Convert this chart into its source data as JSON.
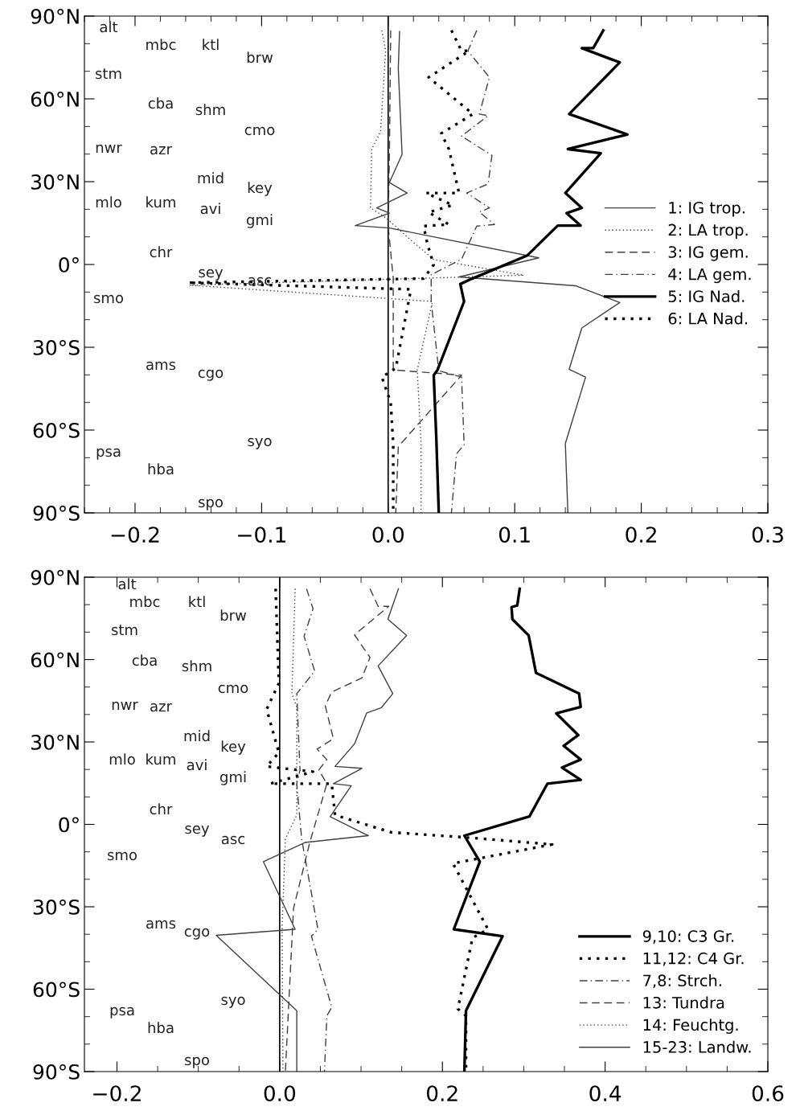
{
  "chart_data": [
    {
      "type": "line",
      "xlim": [
        -0.24,
        0.3
      ],
      "ylim": [
        -90,
        90
      ],
      "xticks": [
        {
          "value": -0.2,
          "label": "−0.2"
        },
        {
          "value": -0.1,
          "label": "−0.1"
        },
        {
          "value": 0.0,
          "label": "0.0"
        },
        {
          "value": 0.1,
          "label": "0.1"
        },
        {
          "value": 0.2,
          "label": "0.2"
        },
        {
          "value": 0.3,
          "label": "0.3"
        }
      ],
      "yticks": [
        {
          "value": 90,
          "label": "90°N"
        },
        {
          "value": 60,
          "label": "60°N"
        },
        {
          "value": 30,
          "label": "30°N"
        },
        {
          "value": 0,
          "label": "0°"
        },
        {
          "value": -30,
          "label": "30°S"
        },
        {
          "value": -60,
          "label": "60°S"
        },
        {
          "value": -90,
          "label": "90°S"
        }
      ],
      "grid": false,
      "legend": "right",
      "marker": "none",
      "ref_lines": [
        {
          "axis": "x",
          "value": 0,
          "color": "#000000"
        }
      ],
      "series": [
        {
          "name": "1: IG trop.",
          "color": "#404040",
          "line_style": "solid",
          "x": [
            0.009,
            0.008,
            0.011,
            0.001,
            0.015,
            -0.009,
            0.001,
            -0.026,
            0.001,
            0.119,
            0.056,
            0.148,
            0.183,
            0.153,
            0.143,
            0.156,
            0.14,
            0.142
          ],
          "values": [
            84.4,
            71.0,
            39.9,
            29.7,
            25.9,
            20.5,
            18.6,
            14.1,
            13.2,
            2.4,
            -4.5,
            -7.7,
            -13.8,
            -23.0,
            -38.0,
            -40.8,
            -64.9,
            -90
          ]
        },
        {
          "name": "2: LA trop.",
          "color": "#404040",
          "line_style": "dotted",
          "x": [
            -0.005,
            -0.002,
            -0.006,
            -0.013,
            -0.014,
            -0.002,
            0.018,
            0.036,
            0.107,
            -0.157,
            0.035,
            0.023,
            0.026,
            0.026
          ],
          "values": [
            84.8,
            77.4,
            48.1,
            41.8,
            20.5,
            17.0,
            8.8,
            1.8,
            -3.9,
            -7.5,
            -13.4,
            -38.2,
            -64.9,
            -90
          ]
        },
        {
          "name": "3: IG gem.",
          "color": "#404040",
          "line_style": "dashed",
          "x": [
            0.002,
            0.001,
            0.0,
            0.004,
            0.004,
            0.058,
            0.008,
            0.006
          ],
          "values": [
            84.8,
            40,
            14,
            -5,
            -38.2,
            -40.1,
            -66,
            -90
          ]
        },
        {
          "name": "4: LA gem.",
          "color": "#404040",
          "line_style": "dashdot",
          "x": [
            0.07,
            0.063,
            0.08,
            0.072,
            0.079,
            0.058,
            0.082,
            0.079,
            0.062,
            0.08,
            0.072,
            0.084,
            0.07,
            0.058,
            0.034,
            0.034,
            0.04,
            0.058,
            0.06,
            0.054,
            0.05
          ],
          "values": [
            84.8,
            77.4,
            67.8,
            54.5,
            53.9,
            46.5,
            39.5,
            29.2,
            25.9,
            20.5,
            19.0,
            14.5,
            13.9,
            1.9,
            -3.7,
            -13.4,
            -38.5,
            -40.8,
            -65.3,
            -68.6,
            -90
          ]
        },
        {
          "name": "5: IG Nad.",
          "color": "#000000",
          "line_style": "solid",
          "x": [
            0.17,
            0.162,
            0.153,
            0.183,
            0.143,
            0.189,
            0.142,
            0.168,
            0.14,
            0.153,
            0.141,
            0.152,
            0.134,
            0.11,
            0.066,
            0.057,
            0.06,
            0.039,
            0.036,
            0.038,
            0.04
          ],
          "values": [
            84.8,
            78.4,
            78.4,
            73.2,
            54.5,
            47.1,
            41.8,
            40.3,
            25.9,
            20.5,
            18.6,
            14.1,
            14.1,
            3.3,
            -5.2,
            -7.1,
            -13.4,
            -38.2,
            -40.1,
            -62.4,
            -90
          ]
        },
        {
          "name": "6: LA Nad.",
          "color": "#000000",
          "line_style": "dotted",
          "x": [
            0.05,
            0.058,
            0.064,
            0.032,
            0.067,
            0.042,
            0.048,
            0.056,
            0.03,
            0.051,
            0.032,
            0.048,
            0.028,
            0.031,
            0.036,
            0.028,
            -0.158,
            0.018,
            0.006,
            -0.005,
            0.002,
            0.004,
            0.004
          ],
          "values": [
            84.8,
            77.4,
            77.4,
            67.8,
            54.5,
            47.5,
            41.8,
            25.9,
            25.9,
            21.5,
            18.9,
            14.5,
            13.9,
            7.5,
            -0.1,
            -5.1,
            -6.6,
            -9,
            -37.6,
            -40.8,
            -50,
            -64.9,
            -90
          ]
        }
      ],
      "annotations": [
        "alt",
        "mbc",
        "ktl",
        "brw",
        "stm",
        "cba",
        "shm",
        "cmo",
        "nwr",
        "azr",
        "mid",
        "key",
        "mlo",
        "kum",
        "avi",
        "gmi",
        "chr",
        "sey",
        "asc",
        "smo",
        "ams",
        "cgo",
        "syo",
        "psa",
        "hba",
        "spo"
      ]
    },
    {
      "type": "line",
      "xlim": [
        -0.24,
        0.6
      ],
      "ylim": [
        -90,
        90
      ],
      "xticks": [
        {
          "value": -0.2,
          "label": "−0.2"
        },
        {
          "value": 0.0,
          "label": "0.0"
        },
        {
          "value": 0.2,
          "label": "0.2"
        },
        {
          "value": 0.4,
          "label": "0.4"
        },
        {
          "value": 0.6,
          "label": "0.6"
        }
      ],
      "yticks": [
        {
          "value": 90,
          "label": "90°N"
        },
        {
          "value": 60,
          "label": "60°N"
        },
        {
          "value": 30,
          "label": "30°N"
        },
        {
          "value": 0,
          "label": "0°"
        },
        {
          "value": -30,
          "label": "30°S"
        },
        {
          "value": -60,
          "label": "60°S"
        },
        {
          "value": -90,
          "label": "90°S"
        }
      ],
      "grid": false,
      "legend": "bottom right",
      "marker": "none",
      "ref_lines": [
        {
          "axis": "x",
          "value": 0,
          "color": "#000000"
        }
      ],
      "series": [
        {
          "name": "9,10: C3 Gr.",
          "color": "#000000",
          "line_style": "solid",
          "x": [
            0.295,
            0.292,
            0.285,
            0.286,
            0.306,
            0.315,
            0.368,
            0.37,
            0.34,
            0.367,
            0.349,
            0.37,
            0.347,
            0.37,
            0.329,
            0.307,
            0.227,
            0.246,
            0.214,
            0.274,
            0.229,
            0.227
          ],
          "values": [
            85.8,
            79.7,
            79.1,
            74.7,
            68.8,
            55.2,
            47.6,
            42.8,
            40.4,
            32.5,
            28.6,
            23.6,
            20.7,
            16.2,
            14.8,
            2.9,
            -4.1,
            -13.6,
            -38.2,
            -40.7,
            -67.8,
            -90
          ]
        },
        {
          "name": "11,12: C4 Gr.",
          "color": "#000000",
          "line_style": "dotted",
          "x": [
            -0.005,
            -0.001,
            -0.016,
            -0.001,
            -0.016,
            0.041,
            -0.012,
            0.064,
            0.068,
            0.137,
            0.227,
            0.335,
            0.213,
            0.256,
            0.237,
            0.219,
            0.229,
            0.229
          ],
          "values": [
            85.8,
            51.4,
            41.9,
            26.1,
            21.1,
            19.2,
            14.8,
            14.8,
            3.4,
            -2.9,
            -4.7,
            -7.3,
            -14.2,
            -38.2,
            -41.3,
            -67.2,
            -69.7,
            -90
          ]
        },
        {
          "name": "7,8: Strch.",
          "color": "#404040",
          "line_style": "dashdot",
          "x": [
            0.033,
            0.041,
            0.03,
            0.043,
            0.021,
            0.025,
            0.021,
            0.027,
            0.047,
            0.039,
            0.064,
            0.058,
            0.055
          ],
          "values": [
            85.8,
            78.5,
            68.5,
            55.8,
            47.6,
            19.8,
            14.8,
            -5.3,
            -38.2,
            -40.7,
            -66.6,
            -69.7,
            -90
          ]
        },
        {
          "name": "13: Tundra",
          "color": "#404040",
          "line_style": "dashed",
          "x": [
            0.111,
            0.121,
            0.134,
            0.092,
            0.111,
            0.101,
            0.064,
            0.056,
            0.066,
            0.046,
            0.058,
            0.048,
            0.058,
            0.037,
            0.017,
            0.007
          ],
          "values": [
            85.8,
            79.4,
            79.4,
            69.0,
            60.8,
            53.3,
            48.2,
            43.2,
            31.2,
            27.4,
            23.6,
            19.8,
            14.8,
            -6.6,
            -30.6,
            -90
          ]
        },
        {
          "name": "14: Feuchtg.",
          "color": "#404040",
          "line_style": "dotted",
          "x": [
            0.019,
            0.015,
            0.021,
            0.021,
            0.007,
            0.003,
            0.004
          ],
          "values": [
            85.8,
            47.6,
            42.8,
            3.4,
            -5.3,
            -37.2,
            -90
          ]
        },
        {
          "name": "15-23: Landw.",
          "color": "#404040",
          "line_style": "solid",
          "x": [
            0.146,
            0.133,
            0.156,
            0.121,
            0.139,
            0.125,
            0.107,
            0.092,
            0.068,
            0.101,
            0.066,
            0.088,
            0.062,
            0.109,
            0.031,
            -0.02,
            0.019,
            -0.078,
            0.021,
            0.021
          ],
          "values": [
            85.8,
            74.7,
            68.8,
            57.7,
            47.6,
            42.5,
            40.6,
            29.3,
            21.1,
            20.4,
            14.8,
            14.1,
            2.8,
            -4.1,
            -6.6,
            -13.6,
            -38.2,
            -40.4,
            -67.8,
            -90
          ]
        }
      ],
      "annotations": [
        "alt",
        "mbc",
        "ktl",
        "brw",
        "stm",
        "cba",
        "shm",
        "cmo",
        "nwr",
        "azr",
        "mid",
        "key",
        "mlo",
        "kum",
        "avi",
        "gmi",
        "chr",
        "sey",
        "asc",
        "smo",
        "ams",
        "cgo",
        "syo",
        "psa",
        "hba",
        "spo"
      ]
    }
  ]
}
